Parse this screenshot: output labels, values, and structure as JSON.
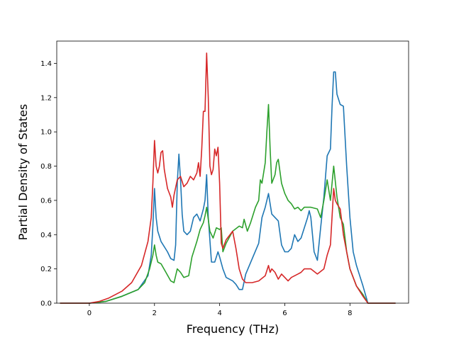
{
  "chart_data": {
    "type": "line",
    "title": "",
    "xlabel": "Frequency (THz)",
    "ylabel": "Partial Density of States",
    "xlim": [
      -1.0,
      9.8
    ],
    "ylim": [
      0.0,
      1.53
    ],
    "xticks": [
      0,
      2,
      4,
      6,
      8
    ],
    "yticks": [
      0.0,
      0.2,
      0.4,
      0.6,
      0.8,
      1.0,
      1.2,
      1.4
    ],
    "xtick_labels": [
      "0",
      "2",
      "4",
      "6",
      "8"
    ],
    "ytick_labels": [
      "0.0",
      "0.2",
      "0.4",
      "0.6",
      "0.8",
      "1.0",
      "1.2",
      "1.4"
    ],
    "grid": false,
    "legend": "none",
    "series": [
      {
        "color": "#1f77b4",
        "points": [
          [
            -0.9,
            0
          ],
          [
            0,
            0
          ],
          [
            0.5,
            0.01
          ],
          [
            1.0,
            0.04
          ],
          [
            1.5,
            0.08
          ],
          [
            1.8,
            0.16
          ],
          [
            1.9,
            0.28
          ],
          [
            1.95,
            0.45
          ],
          [
            2.0,
            0.67
          ],
          [
            2.05,
            0.5
          ],
          [
            2.1,
            0.42
          ],
          [
            2.2,
            0.36
          ],
          [
            2.4,
            0.3
          ],
          [
            2.5,
            0.26
          ],
          [
            2.6,
            0.25
          ],
          [
            2.65,
            0.34
          ],
          [
            2.7,
            0.7
          ],
          [
            2.75,
            0.87
          ],
          [
            2.8,
            0.72
          ],
          [
            2.85,
            0.52
          ],
          [
            2.9,
            0.42
          ],
          [
            3.0,
            0.4
          ],
          [
            3.1,
            0.42
          ],
          [
            3.2,
            0.5
          ],
          [
            3.3,
            0.52
          ],
          [
            3.4,
            0.48
          ],
          [
            3.5,
            0.55
          ],
          [
            3.55,
            0.6
          ],
          [
            3.6,
            0.75
          ],
          [
            3.65,
            0.5
          ],
          [
            3.75,
            0.24
          ],
          [
            3.85,
            0.24
          ],
          [
            3.95,
            0.3
          ],
          [
            4.0,
            0.27
          ],
          [
            4.1,
            0.2
          ],
          [
            4.2,
            0.15
          ],
          [
            4.4,
            0.13
          ],
          [
            4.5,
            0.11
          ],
          [
            4.6,
            0.08
          ],
          [
            4.7,
            0.08
          ],
          [
            4.8,
            0.17
          ],
          [
            5.0,
            0.26
          ],
          [
            5.2,
            0.35
          ],
          [
            5.3,
            0.5
          ],
          [
            5.4,
            0.56
          ],
          [
            5.5,
            0.64
          ],
          [
            5.6,
            0.52
          ],
          [
            5.7,
            0.5
          ],
          [
            5.8,
            0.48
          ],
          [
            5.9,
            0.34
          ],
          [
            6.0,
            0.3
          ],
          [
            6.1,
            0.3
          ],
          [
            6.2,
            0.32
          ],
          [
            6.3,
            0.4
          ],
          [
            6.4,
            0.36
          ],
          [
            6.5,
            0.38
          ],
          [
            6.6,
            0.44
          ],
          [
            6.7,
            0.5
          ],
          [
            6.75,
            0.54
          ],
          [
            6.8,
            0.5
          ],
          [
            6.9,
            0.3
          ],
          [
            7.0,
            0.25
          ],
          [
            7.1,
            0.44
          ],
          [
            7.2,
            0.62
          ],
          [
            7.3,
            0.86
          ],
          [
            7.4,
            0.9
          ],
          [
            7.45,
            1.15
          ],
          [
            7.5,
            1.35
          ],
          [
            7.55,
            1.35
          ],
          [
            7.6,
            1.22
          ],
          [
            7.7,
            1.16
          ],
          [
            7.8,
            1.15
          ],
          [
            7.9,
            0.8
          ],
          [
            8.0,
            0.5
          ],
          [
            8.1,
            0.3
          ],
          [
            8.2,
            0.22
          ],
          [
            8.4,
            0.1
          ],
          [
            8.55,
            0.0
          ],
          [
            9.4,
            0.0
          ]
        ]
      },
      {
        "color": "#2ca02c",
        "points": [
          [
            -0.9,
            0
          ],
          [
            0,
            0
          ],
          [
            0.5,
            0.01
          ],
          [
            1.0,
            0.04
          ],
          [
            1.5,
            0.08
          ],
          [
            1.7,
            0.12
          ],
          [
            1.85,
            0.2
          ],
          [
            1.95,
            0.28
          ],
          [
            2.0,
            0.34
          ],
          [
            2.05,
            0.28
          ],
          [
            2.1,
            0.24
          ],
          [
            2.2,
            0.23
          ],
          [
            2.35,
            0.18
          ],
          [
            2.5,
            0.13
          ],
          [
            2.6,
            0.12
          ],
          [
            2.7,
            0.2
          ],
          [
            2.8,
            0.18
          ],
          [
            2.9,
            0.15
          ],
          [
            3.05,
            0.16
          ],
          [
            3.15,
            0.27
          ],
          [
            3.3,
            0.36
          ],
          [
            3.4,
            0.43
          ],
          [
            3.5,
            0.47
          ],
          [
            3.55,
            0.51
          ],
          [
            3.6,
            0.56
          ],
          [
            3.7,
            0.42
          ],
          [
            3.8,
            0.38
          ],
          [
            3.9,
            0.44
          ],
          [
            4.0,
            0.43
          ],
          [
            4.05,
            0.44
          ],
          [
            4.1,
            0.3
          ],
          [
            4.2,
            0.35
          ],
          [
            4.4,
            0.42
          ],
          [
            4.6,
            0.45
          ],
          [
            4.7,
            0.44
          ],
          [
            4.75,
            0.49
          ],
          [
            4.85,
            0.42
          ],
          [
            4.95,
            0.47
          ],
          [
            5.1,
            0.56
          ],
          [
            5.2,
            0.6
          ],
          [
            5.25,
            0.72
          ],
          [
            5.3,
            0.7
          ],
          [
            5.4,
            0.82
          ],
          [
            5.45,
            1.0
          ],
          [
            5.5,
            1.16
          ],
          [
            5.55,
            0.9
          ],
          [
            5.6,
            0.7
          ],
          [
            5.7,
            0.75
          ],
          [
            5.75,
            0.82
          ],
          [
            5.8,
            0.84
          ],
          [
            5.9,
            0.7
          ],
          [
            6.0,
            0.64
          ],
          [
            6.1,
            0.6
          ],
          [
            6.2,
            0.58
          ],
          [
            6.3,
            0.55
          ],
          [
            6.4,
            0.56
          ],
          [
            6.5,
            0.54
          ],
          [
            6.6,
            0.56
          ],
          [
            6.8,
            0.56
          ],
          [
            7.0,
            0.55
          ],
          [
            7.1,
            0.5
          ],
          [
            7.2,
            0.6
          ],
          [
            7.3,
            0.72
          ],
          [
            7.4,
            0.6
          ],
          [
            7.5,
            0.8
          ],
          [
            7.6,
            0.62
          ],
          [
            7.7,
            0.5
          ],
          [
            7.8,
            0.46
          ],
          [
            7.9,
            0.3
          ],
          [
            8.0,
            0.2
          ],
          [
            8.2,
            0.1
          ],
          [
            8.4,
            0.05
          ],
          [
            8.55,
            0.0
          ],
          [
            9.4,
            0.0
          ]
        ]
      },
      {
        "color": "#d62728",
        "points": [
          [
            -0.9,
            0
          ],
          [
            0,
            0
          ],
          [
            0.3,
            0.01
          ],
          [
            0.6,
            0.03
          ],
          [
            1.0,
            0.07
          ],
          [
            1.3,
            0.12
          ],
          [
            1.6,
            0.22
          ],
          [
            1.8,
            0.36
          ],
          [
            1.9,
            0.5
          ],
          [
            1.95,
            0.7
          ],
          [
            2.0,
            0.95
          ],
          [
            2.05,
            0.8
          ],
          [
            2.1,
            0.76
          ],
          [
            2.15,
            0.8
          ],
          [
            2.2,
            0.88
          ],
          [
            2.25,
            0.89
          ],
          [
            2.3,
            0.78
          ],
          [
            2.4,
            0.67
          ],
          [
            2.5,
            0.62
          ],
          [
            2.55,
            0.56
          ],
          [
            2.6,
            0.63
          ],
          [
            2.7,
            0.72
          ],
          [
            2.8,
            0.74
          ],
          [
            2.9,
            0.68
          ],
          [
            3.0,
            0.7
          ],
          [
            3.1,
            0.74
          ],
          [
            3.2,
            0.72
          ],
          [
            3.3,
            0.76
          ],
          [
            3.35,
            0.82
          ],
          [
            3.4,
            0.74
          ],
          [
            3.45,
            0.9
          ],
          [
            3.5,
            1.12
          ],
          [
            3.55,
            1.12
          ],
          [
            3.6,
            1.46
          ],
          [
            3.65,
            1.2
          ],
          [
            3.7,
            0.8
          ],
          [
            3.75,
            0.75
          ],
          [
            3.8,
            0.78
          ],
          [
            3.85,
            0.9
          ],
          [
            3.9,
            0.86
          ],
          [
            3.95,
            0.91
          ],
          [
            4.0,
            0.7
          ],
          [
            4.05,
            0.35
          ],
          [
            4.1,
            0.32
          ],
          [
            4.2,
            0.37
          ],
          [
            4.4,
            0.42
          ],
          [
            4.5,
            0.32
          ],
          [
            4.6,
            0.2
          ],
          [
            4.7,
            0.14
          ],
          [
            4.8,
            0.12
          ],
          [
            5.0,
            0.12
          ],
          [
            5.2,
            0.13
          ],
          [
            5.4,
            0.16
          ],
          [
            5.5,
            0.22
          ],
          [
            5.55,
            0.18
          ],
          [
            5.6,
            0.2
          ],
          [
            5.7,
            0.18
          ],
          [
            5.8,
            0.14
          ],
          [
            5.9,
            0.17
          ],
          [
            6.0,
            0.15
          ],
          [
            6.1,
            0.13
          ],
          [
            6.2,
            0.15
          ],
          [
            6.3,
            0.16
          ],
          [
            6.4,
            0.17
          ],
          [
            6.5,
            0.18
          ],
          [
            6.6,
            0.2
          ],
          [
            6.8,
            0.2
          ],
          [
            7.0,
            0.17
          ],
          [
            7.2,
            0.2
          ],
          [
            7.3,
            0.28
          ],
          [
            7.4,
            0.34
          ],
          [
            7.5,
            0.67
          ],
          [
            7.55,
            0.6
          ],
          [
            7.6,
            0.58
          ],
          [
            7.7,
            0.55
          ],
          [
            7.8,
            0.4
          ],
          [
            7.9,
            0.3
          ],
          [
            8.0,
            0.2
          ],
          [
            8.2,
            0.1
          ],
          [
            8.4,
            0.04
          ],
          [
            8.55,
            0.0
          ],
          [
            9.4,
            0.0
          ]
        ]
      }
    ]
  }
}
